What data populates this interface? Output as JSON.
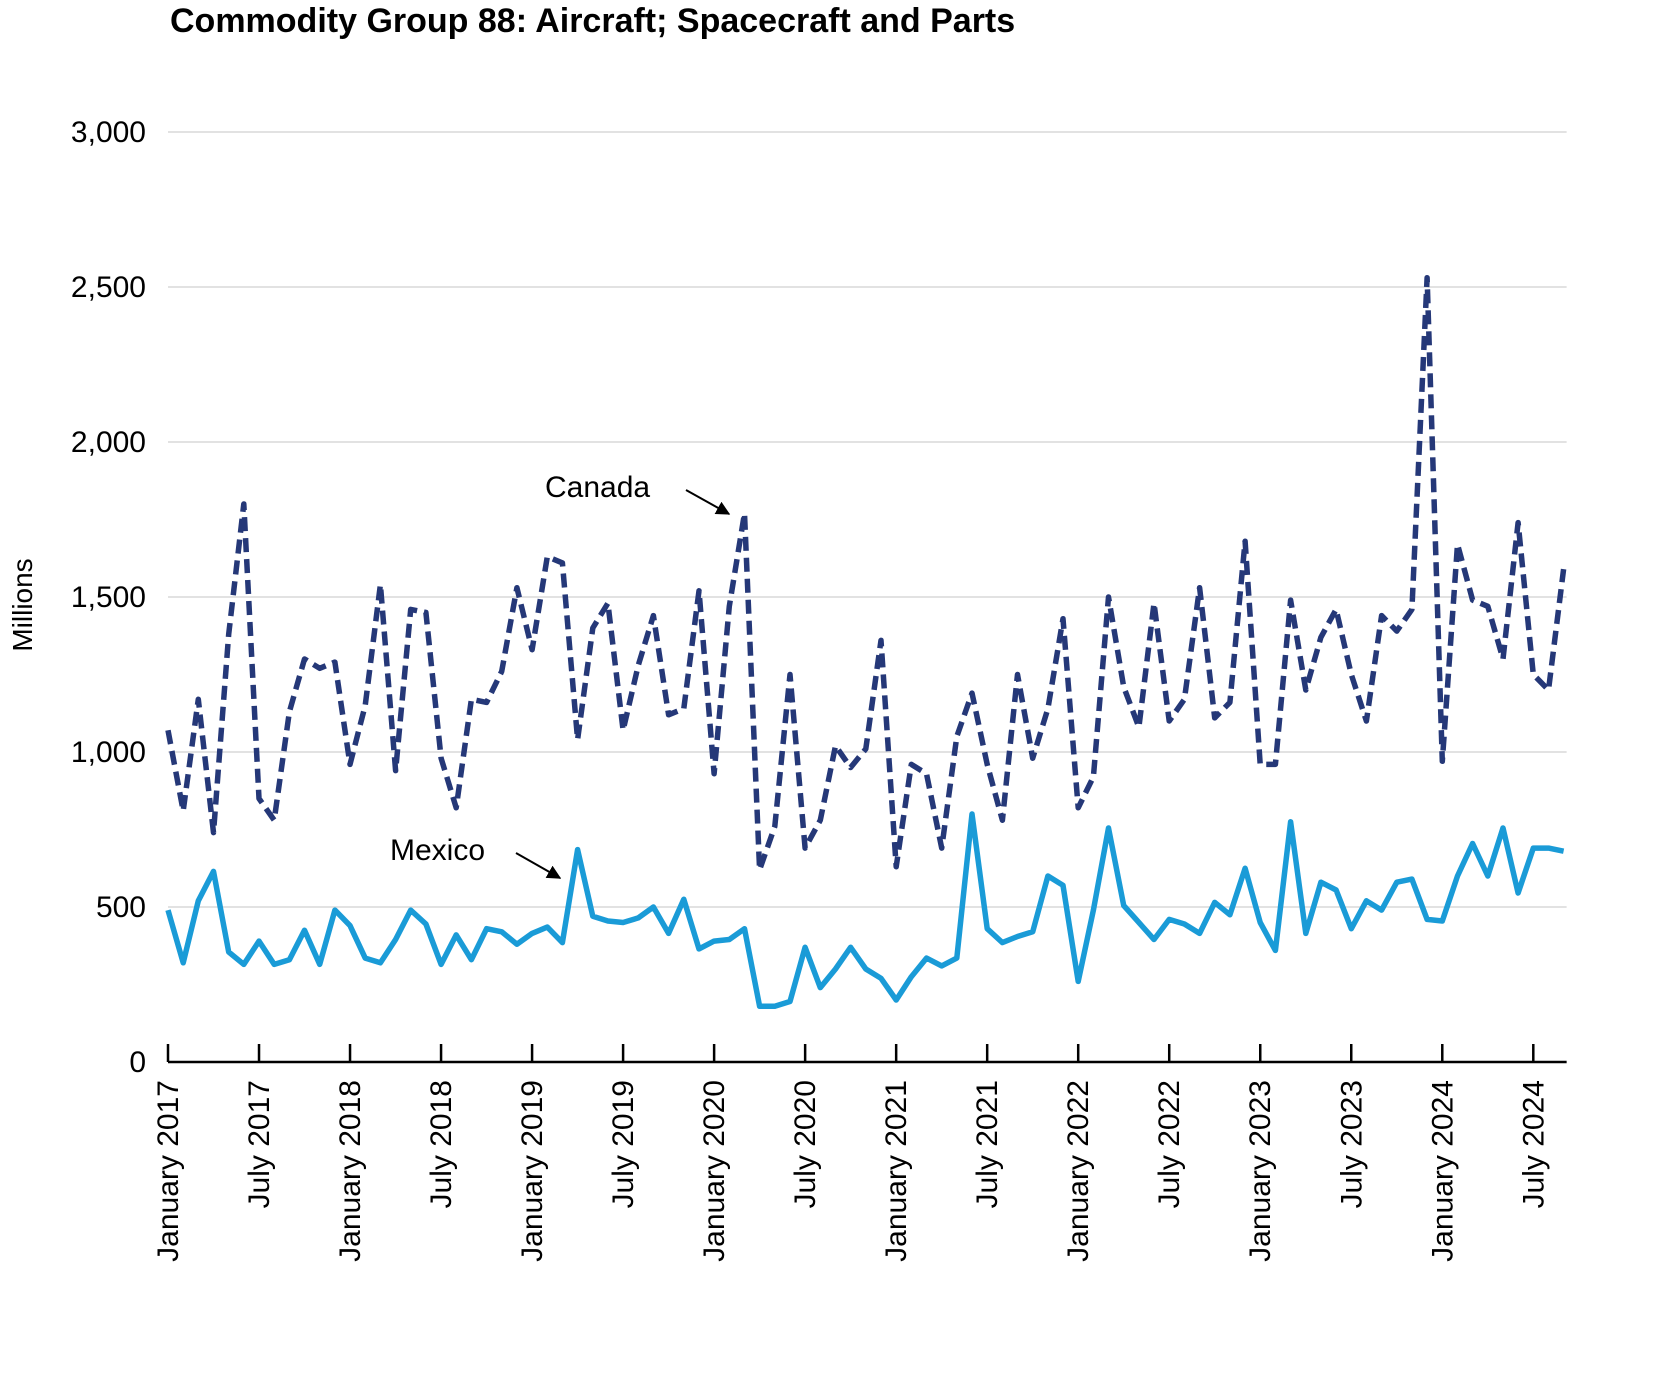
{
  "chart_data": {
    "type": "line",
    "title": "Commodity Group 88: Aircraft; Spacecraft and Parts",
    "ylabel": "Millions",
    "xlabel": "",
    "ylim": [
      0,
      3000
    ],
    "yticks": [
      0,
      500,
      1000,
      1500,
      2000,
      2500,
      3000
    ],
    "ytick_labels": [
      "0",
      "500",
      "1,000",
      "1,500",
      "2,000",
      "2,500",
      "3,000"
    ],
    "xtick_labels": [
      "January 2017",
      "July 2017",
      "January 2018",
      "July 2018",
      "January 2019",
      "July 2019",
      "January 2020",
      "July 2020",
      "January 2021",
      "July 2021",
      "January 2022",
      "July 2022",
      "January 2023",
      "July 2023",
      "January 2024",
      "July 2024"
    ],
    "grid": "horizontal",
    "x": [
      "2017-01",
      "2017-02",
      "2017-03",
      "2017-04",
      "2017-05",
      "2017-06",
      "2017-07",
      "2017-08",
      "2017-09",
      "2017-10",
      "2017-11",
      "2017-12",
      "2018-01",
      "2018-02",
      "2018-03",
      "2018-04",
      "2018-05",
      "2018-06",
      "2018-07",
      "2018-08",
      "2018-09",
      "2018-10",
      "2018-11",
      "2018-12",
      "2019-01",
      "2019-02",
      "2019-03",
      "2019-04",
      "2019-05",
      "2019-06",
      "2019-07",
      "2019-08",
      "2019-09",
      "2019-10",
      "2019-11",
      "2019-12",
      "2020-01",
      "2020-02",
      "2020-03",
      "2020-04",
      "2020-05",
      "2020-06",
      "2020-07",
      "2020-08",
      "2020-09",
      "2020-10",
      "2020-11",
      "2020-12",
      "2021-01",
      "2021-02",
      "2021-03",
      "2021-04",
      "2021-05",
      "2021-06",
      "2021-07",
      "2021-08",
      "2021-09",
      "2021-10",
      "2021-11",
      "2021-12",
      "2022-01",
      "2022-02",
      "2022-03",
      "2022-04",
      "2022-05",
      "2022-06",
      "2022-07",
      "2022-08",
      "2022-09",
      "2022-10",
      "2022-11",
      "2022-12",
      "2023-01",
      "2023-02",
      "2023-03",
      "2023-04",
      "2023-05",
      "2023-06",
      "2023-07",
      "2023-08",
      "2023-09",
      "2023-10",
      "2023-11",
      "2023-12",
      "2024-01",
      "2024-02",
      "2024-03",
      "2024-04",
      "2024-05",
      "2024-06",
      "2024-07",
      "2024-08",
      "2024-09"
    ],
    "series": [
      {
        "name": "Canada",
        "color": "#253878",
        "style": "dashed",
        "values": [
          1070,
          810,
          1170,
          740,
          1380,
          1800,
          850,
          780,
          1130,
          1300,
          1270,
          1290,
          960,
          1150,
          1540,
          940,
          1460,
          1450,
          980,
          820,
          1170,
          1160,
          1260,
          1530,
          1330,
          1630,
          1610,
          1040,
          1400,
          1480,
          1070,
          1280,
          1440,
          1120,
          1140,
          1520,
          930,
          1470,
          1770,
          620,
          760,
          1250,
          690,
          780,
          1020,
          950,
          1010,
          1360,
          630,
          960,
          930,
          690,
          1050,
          1190,
          960,
          780,
          1250,
          980,
          1140,
          1430,
          820,
          920,
          1500,
          1210,
          1080,
          1480,
          1100,
          1170,
          1530,
          1110,
          1160,
          1680,
          960,
          960,
          1490,
          1200,
          1370,
          1460,
          1250,
          1100,
          1440,
          1390,
          1460,
          2530,
          970,
          1670,
          1490,
          1470,
          1300,
          1740,
          1250,
          1200,
          1590
        ]
      },
      {
        "name": "Mexico",
        "color": "#1a9bd7",
        "style": "solid",
        "values": [
          490,
          320,
          520,
          615,
          355,
          315,
          390,
          315,
          330,
          425,
          315,
          490,
          440,
          335,
          320,
          395,
          490,
          445,
          315,
          410,
          330,
          430,
          420,
          380,
          415,
          435,
          385,
          685,
          470,
          455,
          450,
          465,
          500,
          415,
          525,
          365,
          390,
          395,
          430,
          180,
          180,
          195,
          370,
          240,
          300,
          370,
          300,
          270,
          200,
          275,
          335,
          310,
          335,
          800,
          430,
          385,
          405,
          420,
          600,
          570,
          260,
          490,
          755,
          505,
          450,
          395,
          460,
          445,
          415,
          515,
          475,
          625,
          450,
          360,
          775,
          415,
          580,
          555,
          430,
          520,
          490,
          580,
          590,
          460,
          455,
          600,
          705,
          600,
          755,
          545,
          690,
          690,
          680
        ]
      }
    ],
    "annotations": [
      {
        "text": "Canada",
        "points_to": "2020-03"
      },
      {
        "text": "Mexico",
        "points_to": "2019-04"
      }
    ]
  }
}
